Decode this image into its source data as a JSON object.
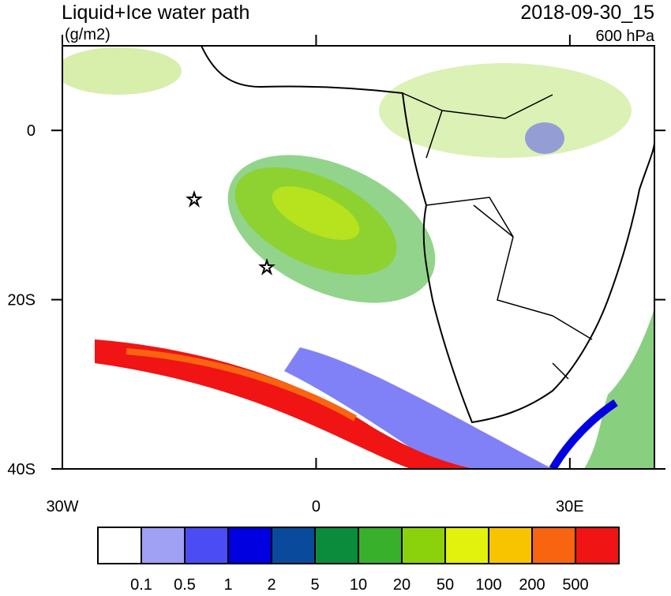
{
  "map": {
    "title": "Liquid+Ice water path",
    "units": "(g/m2)",
    "date": "2018-09-30_15",
    "level": "600 hPa",
    "xlim": [
      -30,
      40
    ],
    "ylim": [
      -40,
      10
    ],
    "xticks": [
      {
        "value": -30,
        "label": "30W"
      },
      0,
      {
        "value": 30,
        "label": "30E"
      }
    ],
    "yticks": [
      0,
      {
        "value": -20,
        "label": "20S"
      },
      {
        "value": -40,
        "label": "40S"
      }
    ],
    "colorbar": {
      "levels": [
        0.1,
        0.5,
        1,
        2,
        5,
        10,
        20,
        50,
        100,
        200,
        500
      ],
      "colors": [
        "#ffffff",
        "#a0a0f4",
        "#4c4cf4",
        "#0000e0",
        "#0a4a9c",
        "#0a8c3c",
        "#38b02c",
        "#8cd20c",
        "#e2f20c",
        "#f8c400",
        "#f86410",
        "#f01414"
      ]
    }
  }
}
